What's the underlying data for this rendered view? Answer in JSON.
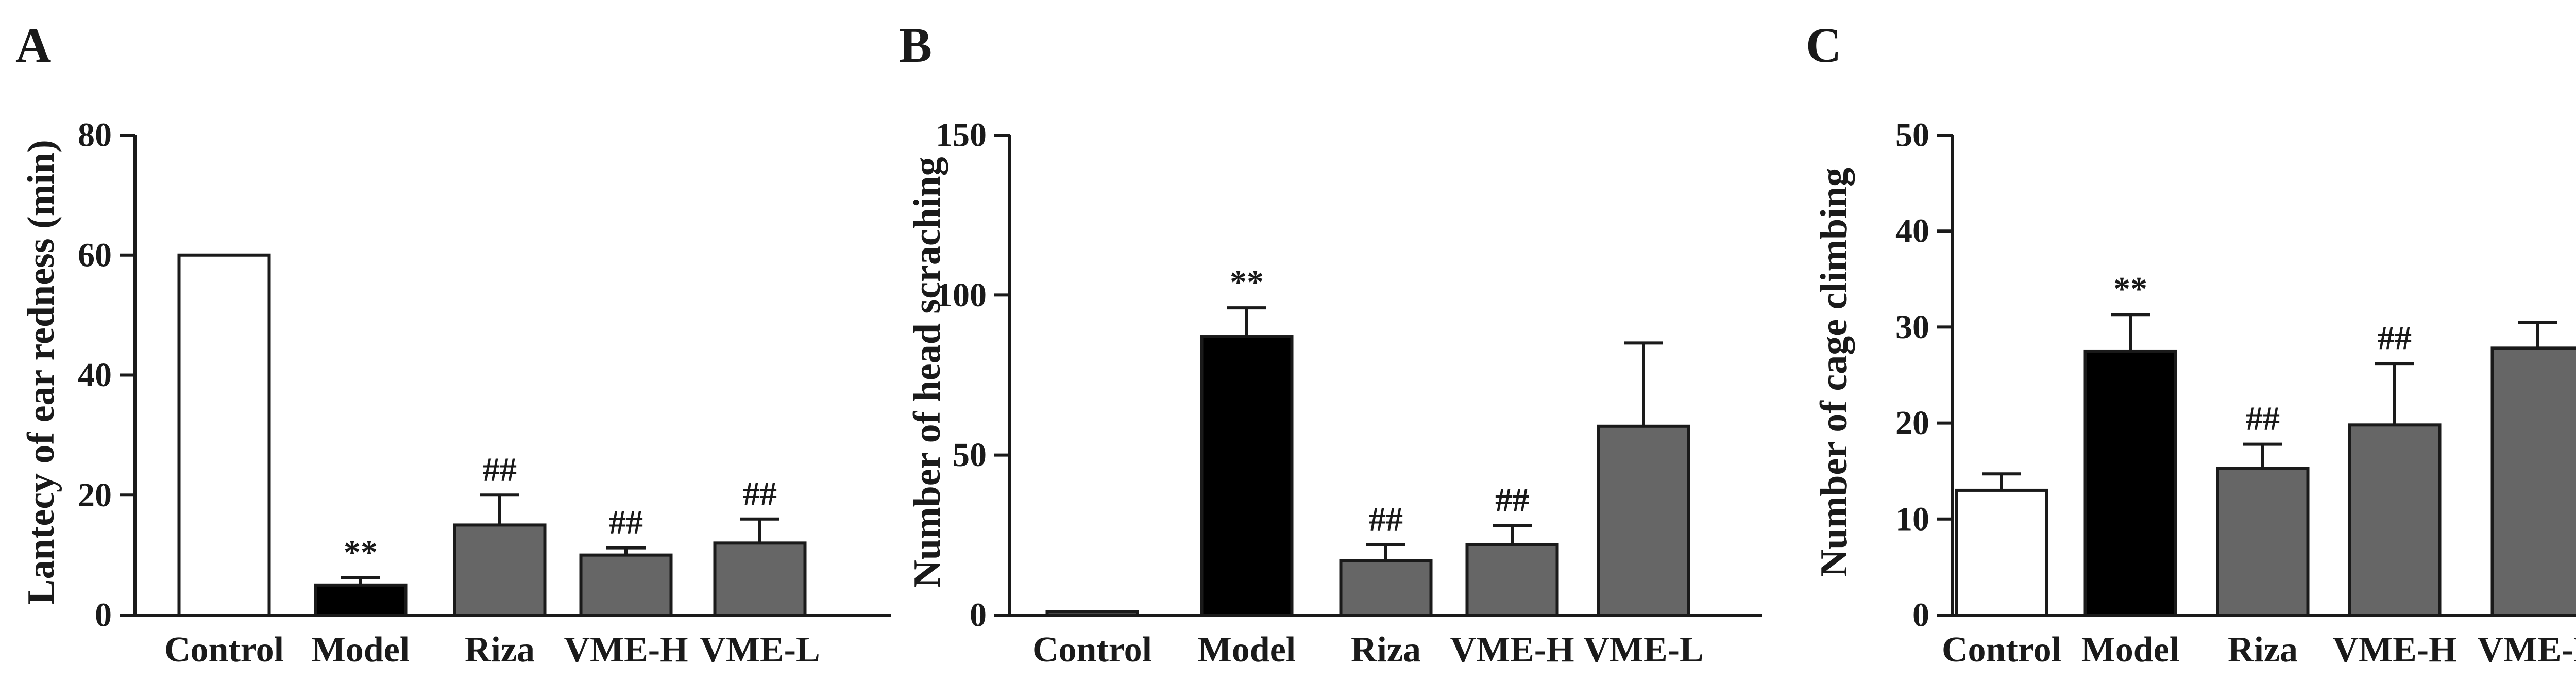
{
  "chart_data": [
    {
      "type": "bar",
      "panel": "A",
      "title": "",
      "xlabel": "",
      "ylabel": "Lantecy of ear redness (min)",
      "ylim": [
        0,
        80
      ],
      "yticks": [
        0,
        20,
        40,
        60,
        80
      ],
      "ytick_labels": [
        "0",
        "20",
        "40",
        "60",
        "80"
      ],
      "categories": [
        "Control",
        "Model",
        "Riza",
        "VME-H",
        "VME-L"
      ],
      "values": [
        60,
        5,
        15,
        10,
        12
      ],
      "errors": [
        0,
        1.2,
        5,
        1.2,
        4
      ],
      "significance": [
        "",
        "**",
        "##",
        "##",
        "##"
      ],
      "colors": [
        "#ffffff",
        "#000000",
        "#666666",
        "#666666",
        "#666666"
      ]
    },
    {
      "type": "bar",
      "panel": "B",
      "title": "",
      "xlabel": "",
      "ylabel": "Number of head scraching",
      "ylim": [
        0,
        150
      ],
      "yticks": [
        0,
        50,
        100,
        150
      ],
      "ytick_labels": [
        "0",
        "50",
        "100",
        "150"
      ],
      "categories": [
        "Control",
        "Model",
        "Riza",
        "VME-H",
        "VME-L"
      ],
      "values": [
        1,
        87,
        17,
        22,
        59
      ],
      "errors": [
        0,
        9,
        5,
        6,
        26
      ],
      "significance": [
        "",
        "**",
        "##",
        "##",
        ""
      ],
      "colors": [
        "#ffffff",
        "#000000",
        "#666666",
        "#666666",
        "#666666"
      ]
    },
    {
      "type": "bar",
      "panel": "C",
      "title": "",
      "xlabel": "",
      "ylabel": "Number of cage climbing",
      "ylim": [
        0,
        50
      ],
      "yticks": [
        0,
        10,
        20,
        30,
        40,
        50
      ],
      "ytick_labels": [
        "0",
        "10",
        "20",
        "30",
        "40",
        "50"
      ],
      "categories": [
        "Control",
        "Model",
        "Riza",
        "VME-H",
        "VME-L"
      ],
      "values": [
        13,
        27.5,
        15.3,
        19.8,
        27.8
      ],
      "errors": [
        1.7,
        3.8,
        2.5,
        6.4,
        2.7
      ],
      "significance": [
        "",
        "**",
        "##",
        "##",
        ""
      ],
      "colors": [
        "#ffffff",
        "#000000",
        "#666666",
        "#666666",
        "#666666"
      ]
    }
  ]
}
